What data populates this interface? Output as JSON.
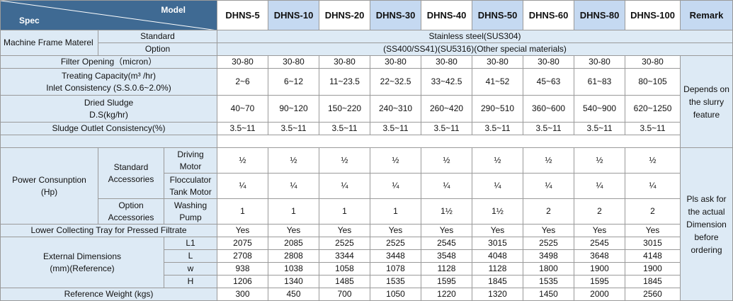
{
  "header": {
    "spec_label": "Spec",
    "model_label": "Model",
    "models": [
      "DHNS-5",
      "DHNS-10",
      "DHNS-20",
      "DHNS-30",
      "DHNS-40",
      "DHNS-50",
      "DHNS-60",
      "DHNS-80",
      "DHNS-100"
    ],
    "remark_label": "Remark"
  },
  "frame": {
    "label": "Machine Frame Materel",
    "standard_label": "Standard",
    "standard_value": "Stainless steel(SUS304)",
    "option_label": "Option",
    "option_value": "(SS400/SS41)(SU5316)(Other special materials)"
  },
  "filter": {
    "label": "Filter Opening（micron）",
    "values": [
      "30-80",
      "30-80",
      "30-80",
      "30-80",
      "30-80",
      "30-80",
      "30-80",
      "30-80",
      "30-80"
    ]
  },
  "capacity": {
    "label1": "Treating Capacity(m³ /hr)",
    "label2": "Inlet Consistency (S.S.0.6~2.0%)",
    "values": [
      "2~6",
      "6~12",
      "11~23.5",
      "22~32.5",
      "33~42.5",
      "41~52",
      "45~63",
      "61~83",
      "80~105"
    ]
  },
  "sludge": {
    "label1": "Dried Sludge",
    "label2": "D.S(kg/hr)",
    "values": [
      "40~70",
      "90~120",
      "150~220",
      "240~310",
      "260~420",
      "290~510",
      "360~600",
      "540~900",
      "620~1250"
    ]
  },
  "outlet": {
    "label": "Sludge Outlet Consistency(%)",
    "values": [
      "3.5~11",
      "3.5~11",
      "3.5~11",
      "3.5~11",
      "3.5~11",
      "3.5~11",
      "3.5~11",
      "3.5~11",
      "3.5~11"
    ]
  },
  "remark1": "Depends on the slurry feature",
  "power": {
    "label1": "Power Consunption",
    "label2": "(Hp)",
    "std_label1": "Standard",
    "std_label2": "Accessories",
    "opt_label1": "Option",
    "opt_label2": "Accessories",
    "driving_label1": "Driving",
    "driving_label2": "Motor",
    "driving_values": [
      "½",
      "½",
      "½",
      "½",
      "½",
      "½",
      "½",
      "½",
      "½"
    ],
    "floc_label1": "Flocculator",
    "floc_label2": "Tank Motor",
    "floc_values": [
      "¼",
      "¼",
      "¼",
      "¼",
      "¼",
      "¼",
      "¼",
      "¼",
      "¼"
    ],
    "wash_label1": "Washing",
    "wash_label2": "Pump",
    "wash_values": [
      "1",
      "1",
      "1",
      "1",
      "1½",
      "1½",
      "2",
      "2",
      "2"
    ]
  },
  "tray": {
    "label": "Lower Collecting Tray for Pressed Filtrate",
    "values": [
      "Yes",
      "Yes",
      "Yes",
      "Yes",
      "Yes",
      "Yes",
      "Yes",
      "Yes",
      "Yes"
    ]
  },
  "dims": {
    "label1": "External Dimensions",
    "label2": "(mm)(Reference)",
    "rows": [
      {
        "label": "L1",
        "values": [
          "2075",
          "2085",
          "2525",
          "2525",
          "2545",
          "3015",
          "2525",
          "2545",
          "3015"
        ]
      },
      {
        "label": "L",
        "values": [
          "2708",
          "2808",
          "3344",
          "3448",
          "3548",
          "4048",
          "3498",
          "3648",
          "4148"
        ]
      },
      {
        "label": "w",
        "values": [
          "938",
          "1038",
          "1058",
          "1078",
          "1128",
          "1128",
          "1800",
          "1900",
          "1900"
        ]
      },
      {
        "label": "H",
        "values": [
          "1206",
          "1340",
          "1485",
          "1535",
          "1595",
          "1845",
          "1535",
          "1595",
          "1845"
        ]
      }
    ]
  },
  "weight": {
    "label": "Reference Weight (kgs)",
    "values": [
      "300",
      "450",
      "700",
      "1050",
      "1220",
      "1320",
      "1450",
      "2000",
      "2560"
    ]
  },
  "remark2": "Pls ask for the actual Dimension before ordering",
  "colors": {
    "header_dark": "#3f6a93",
    "header_blue": "#c5d9f1",
    "label_bg": "#ddeaf5"
  }
}
